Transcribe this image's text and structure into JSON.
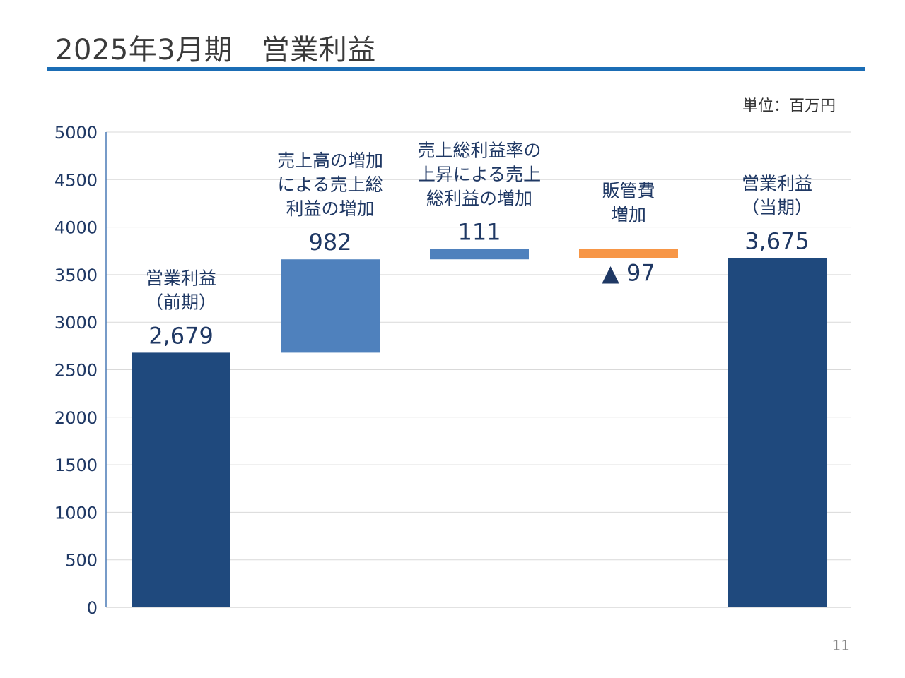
{
  "page": {
    "title": "2025年3月期　営業利益",
    "unit": "単位：百万円",
    "page_number": "11"
  },
  "colors": {
    "rule": "#1b6db5",
    "total_bar": "#1f497d",
    "increase_bar": "#4f81bd",
    "decrease_bar": "#f79646",
    "axis_text": "#1f3864",
    "grid": "#d9d9d9",
    "axis_line": "#4a7ab5"
  },
  "chart_data": {
    "type": "bar",
    "subtype": "waterfall",
    "ylim": [
      0,
      5000
    ],
    "yticks": [
      0,
      500,
      1000,
      1500,
      2000,
      2500,
      3000,
      3500,
      4000,
      4500,
      5000
    ],
    "grid": true,
    "legend": "none",
    "categories": [
      [
        "営業利益",
        "（前期）"
      ],
      [
        "売上高の増加",
        "による売上総",
        "利益の増加"
      ],
      [
        "売上総利益率の",
        "上昇による売上",
        "総利益の増加"
      ],
      [
        "販管費",
        "増加"
      ],
      [
        "営業利益",
        "（当期）"
      ]
    ],
    "bars": [
      {
        "kind": "total",
        "value": 2679,
        "label": "2,679"
      },
      {
        "kind": "increase",
        "value": 982,
        "label": "982"
      },
      {
        "kind": "increase",
        "value": 111,
        "label": "111"
      },
      {
        "kind": "decrease",
        "value": -97,
        "label": "▲ 97"
      },
      {
        "kind": "total",
        "value": 3675,
        "label": "3,675"
      }
    ]
  }
}
